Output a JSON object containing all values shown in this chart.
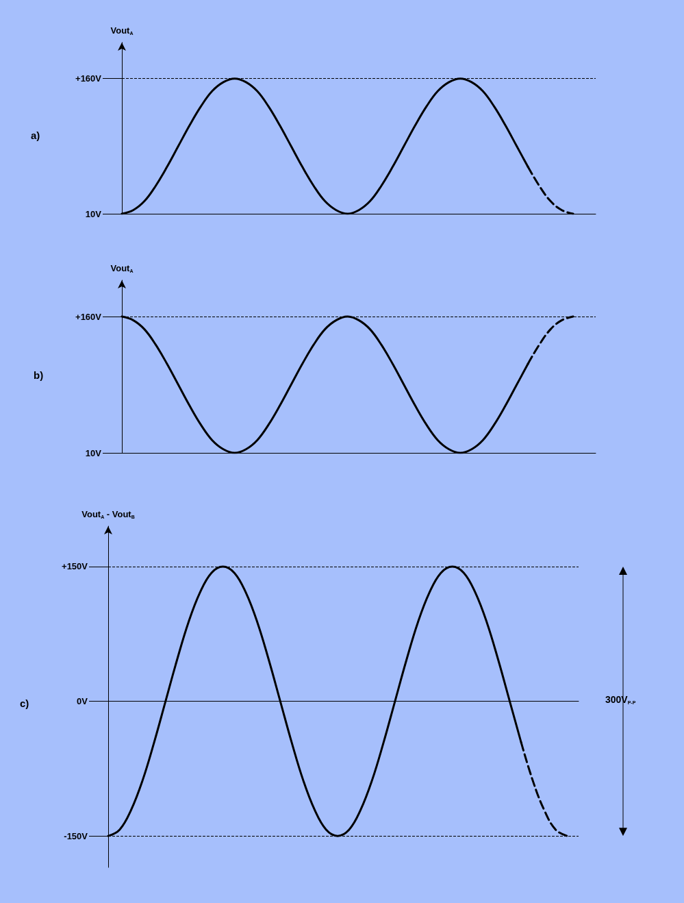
{
  "chart_data": [
    {
      "type": "line",
      "title": "a)",
      "ylabel": "Vout$_{A}$",
      "categories": [
        null,
        null,
        null,
        null,
        null,
        null,
        null,
        null,
        null,
        null,
        null,
        null,
        null,
        null,
        null,
        null,
        null,
        null,
        null,
        null,
        null,
        null,
        null,
        null,
        null,
        null,
        null,
        null,
        null,
        null,
        null,
        null,
        null,
        null,
        null,
        null,
        null,
        null,
        null,
        null,
        null,
        null,
        null
      ],
      "ylim": [
        10,
        200
      ],
      "yticks": [
        {
          "value": 10,
          "label": "10V"
        },
        {
          "value": 160,
          "label": "+160V"
        }
      ],
      "tick_labels": "y",
      "grid": false,
      "marker": "none",
      "series": [
        {
          "color": "#000000",
          "line_style": "solid",
          "values": [
            10,
            14,
            24,
            41,
            62,
            85,
            108,
            129,
            146,
            156,
            160,
            156,
            146,
            129,
            108,
            85,
            62,
            41,
            24,
            14,
            10,
            14,
            24,
            41,
            62,
            85,
            108,
            129,
            146,
            156,
            160,
            156,
            146,
            129,
            108,
            85,
            62,
            null,
            null,
            null,
            null,
            null,
            null
          ]
        },
        {
          "color": "#000000",
          "line_style": "dashed",
          "values": [
            null,
            null,
            null,
            null,
            null,
            null,
            null,
            null,
            null,
            null,
            null,
            null,
            null,
            null,
            null,
            null,
            null,
            null,
            null,
            null,
            null,
            null,
            null,
            null,
            null,
            null,
            null,
            null,
            null,
            null,
            null,
            null,
            null,
            null,
            null,
            null,
            62,
            41,
            24,
            14,
            10,
            null,
            null
          ]
        }
      ],
      "ref_lines": [
        {
          "axis": "y",
          "value": 160,
          "line_style": "dashed"
        }
      ]
    },
    {
      "type": "line",
      "title": "b)",
      "ylabel": "Vout$_{A}$",
      "categories": [
        null,
        null,
        null,
        null,
        null,
        null,
        null,
        null,
        null,
        null,
        null,
        null,
        null,
        null,
        null,
        null,
        null,
        null,
        null,
        null,
        null,
        null,
        null,
        null,
        null,
        null,
        null,
        null,
        null,
        null,
        null,
        null,
        null,
        null,
        null,
        null,
        null,
        null,
        null,
        null,
        null,
        null,
        null
      ],
      "ylim": [
        10,
        200
      ],
      "yticks": [
        {
          "value": 10,
          "label": "10V"
        },
        {
          "value": 160,
          "label": "+160V"
        }
      ],
      "tick_labels": "y",
      "grid": false,
      "marker": "none",
      "series": [
        {
          "color": "#000000",
          "line_style": "solid",
          "values": [
            160,
            156,
            146,
            129,
            108,
            85,
            62,
            41,
            24,
            14,
            10,
            14,
            24,
            41,
            62,
            85,
            108,
            129,
            146,
            156,
            160,
            156,
            146,
            129,
            108,
            85,
            62,
            41,
            24,
            14,
            10,
            14,
            24,
            41,
            62,
            85,
            108,
            null,
            null,
            null,
            null,
            null,
            null
          ]
        },
        {
          "color": "#000000",
          "line_style": "dashed",
          "values": [
            null,
            null,
            null,
            null,
            null,
            null,
            null,
            null,
            null,
            null,
            null,
            null,
            null,
            null,
            null,
            null,
            null,
            null,
            null,
            null,
            null,
            null,
            null,
            null,
            null,
            null,
            null,
            null,
            null,
            null,
            null,
            null,
            null,
            null,
            null,
            null,
            108,
            129,
            146,
            156,
            160,
            null,
            null
          ]
        }
      ],
      "ref_lines": [
        {
          "axis": "y",
          "value": 160,
          "line_style": "dashed"
        }
      ]
    },
    {
      "type": "line",
      "title": "c)",
      "ylabel": "Vout$_{A}$ - Vout$_{B}$",
      "categories": [
        null,
        null,
        null,
        null,
        null,
        null,
        null,
        null,
        null,
        null,
        null,
        null,
        null,
        null,
        null,
        null,
        null,
        null,
        null,
        null,
        null,
        null,
        null,
        null,
        null,
        null,
        null,
        null,
        null,
        null,
        null,
        null,
        null,
        null,
        null,
        null,
        null,
        null,
        null,
        null,
        null,
        null
      ],
      "ylim": [
        -185,
        195
      ],
      "yticks": [
        {
          "value": -150,
          "label": "-150V"
        },
        {
          "value": 0,
          "label": "0V"
        },
        {
          "value": 150,
          "label": "+150V"
        }
      ],
      "tick_labels": "y",
      "grid": false,
      "marker": "none",
      "series": [
        {
          "color": "#000000",
          "line_style": "solid",
          "values": [
            -150,
            -143,
            -121,
            -88,
            -46,
            0,
            46,
            88,
            121,
            143,
            150,
            143,
            121,
            88,
            46,
            0,
            -46,
            -88,
            -121,
            -143,
            -150,
            -143,
            -121,
            -88,
            -46,
            0,
            46,
            88,
            121,
            143,
            150,
            143,
            121,
            88,
            46,
            0,
            -46,
            null,
            null,
            null,
            null,
            null
          ]
        },
        {
          "color": "#000000",
          "line_style": "dashed",
          "values": [
            null,
            null,
            null,
            null,
            null,
            null,
            null,
            null,
            null,
            null,
            null,
            null,
            null,
            null,
            null,
            null,
            null,
            null,
            null,
            null,
            null,
            null,
            null,
            null,
            null,
            null,
            null,
            null,
            null,
            null,
            null,
            null,
            null,
            null,
            null,
            null,
            -46,
            -88,
            -121,
            -143,
            -150,
            null
          ]
        }
      ],
      "ref_lines": [
        {
          "axis": "y",
          "value": 150,
          "line_style": "dashed"
        },
        {
          "axis": "y",
          "value": -150,
          "line_style": "dashed"
        }
      ],
      "annotations": [
        "300V$_{P-P}$"
      ]
    }
  ]
}
